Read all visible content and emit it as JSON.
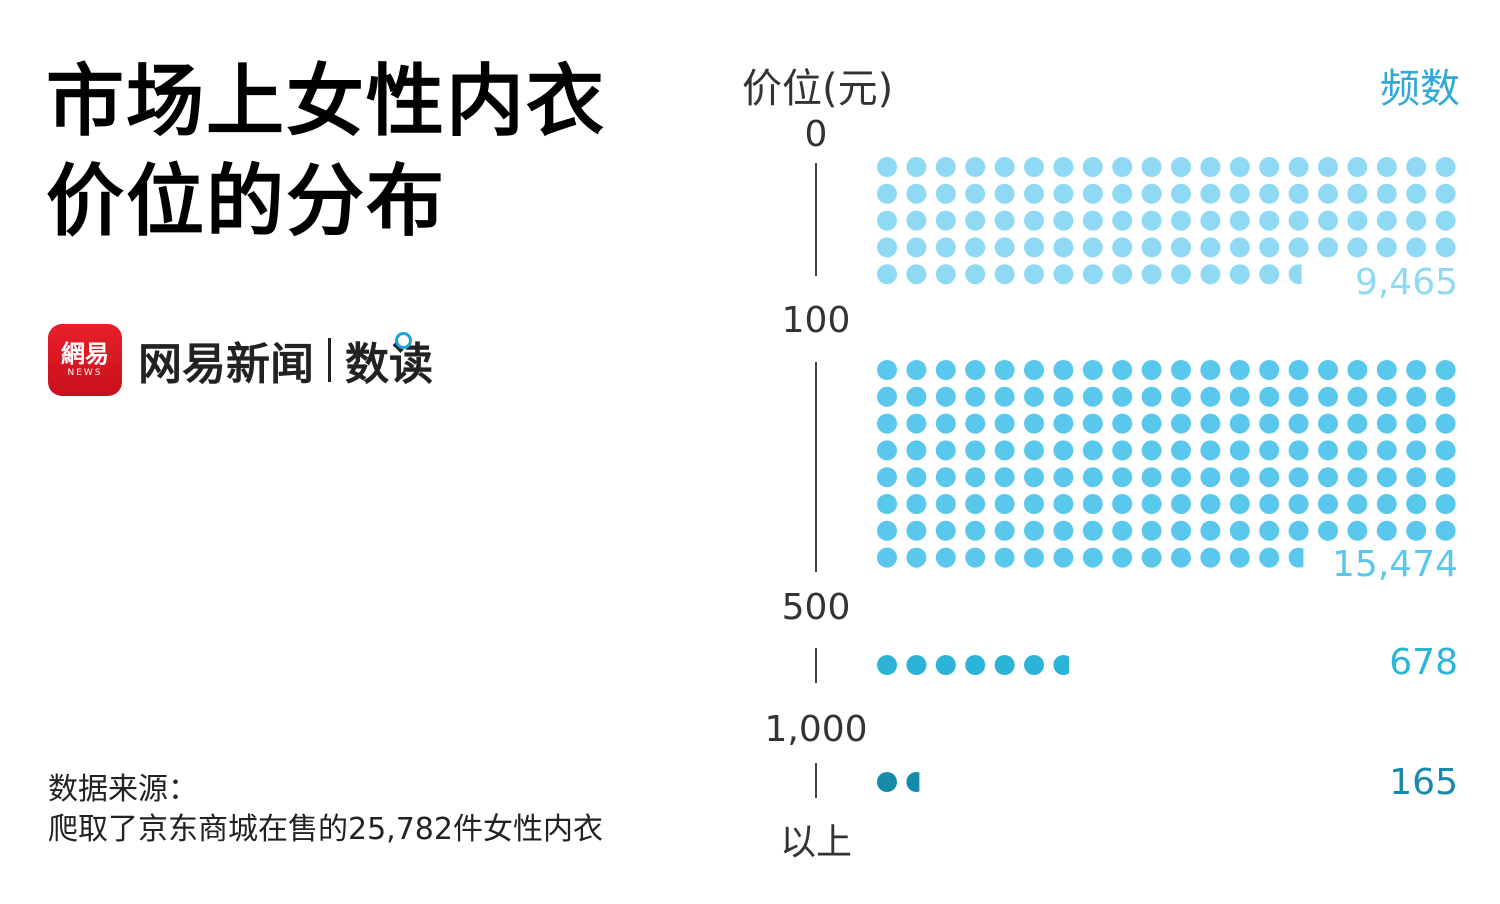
{
  "title": {
    "line1": "市场上女性内衣",
    "line2": "价位的分布"
  },
  "brand": {
    "logo_top": "網易",
    "logo_bottom": "NEWS",
    "name": "网易新闻",
    "sub": "数读"
  },
  "source": {
    "line1": "数据来源：",
    "line2": "爬取了京东商城在售的25,782件女性内衣"
  },
  "chart_data": {
    "type": "dot-matrix",
    "ylabel": "价位(元)",
    "value_label": "频数",
    "tick_labels": [
      "0",
      "100",
      "500",
      "1,000",
      "以上"
    ],
    "units_per_dot": 100,
    "dots_per_row": 20,
    "categories": [
      "0-100",
      "100-500",
      "500-1,000",
      "1,000以上"
    ],
    "values": [
      9465,
      15474,
      678,
      165
    ],
    "value_labels": [
      "9,465",
      "15,474",
      "678",
      "165"
    ],
    "colors": [
      "#8fd9f5",
      "#5ac7ec",
      "#2bb3d8",
      "#168aaa"
    ]
  }
}
